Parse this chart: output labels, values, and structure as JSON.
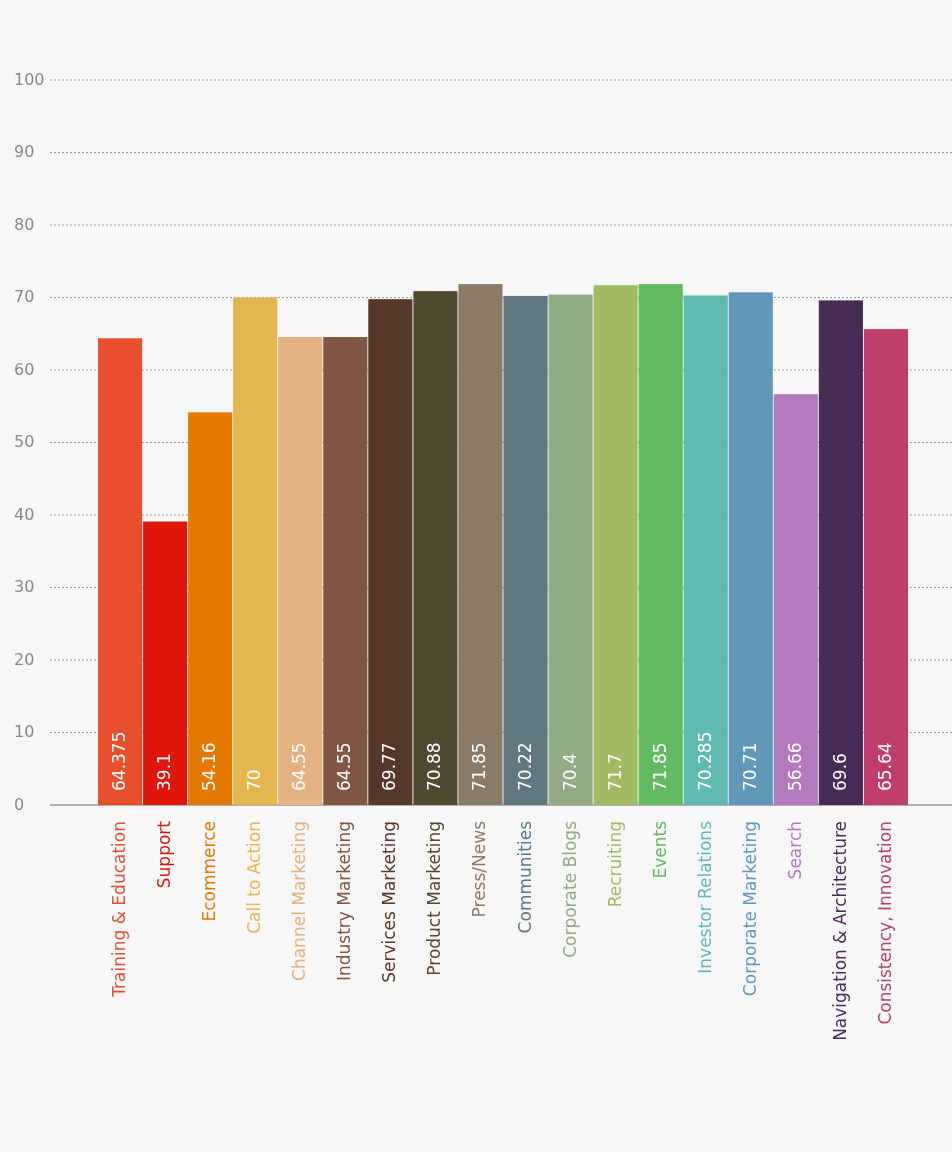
{
  "chart_data": {
    "type": "bar",
    "categories": [
      "Training & Education",
      "Support",
      "Ecommerce",
      "Call to Action",
      "Channel Marketing",
      "Industry Marketing",
      "Services Marketing",
      "Product Marketing",
      "Press/News",
      "Communities",
      "Corporate Blogs",
      "Recruiting",
      "Events",
      "Investor Relations",
      "Corporate Marketing",
      "Search",
      "Navigation & Architecture",
      "Consistency, Innovation"
    ],
    "values": [
      64.375,
      39.1,
      54.16,
      70,
      64.55,
      64.55,
      69.77,
      70.88,
      71.85,
      70.22,
      70.4,
      71.7,
      71.85,
      70.285,
      70.71,
      56.66,
      69.6,
      65.64
    ],
    "colors": [
      "#e8502d",
      "#e0150b",
      "#e57a00",
      "#e4b64f",
      "#e3b282",
      "#7f5744",
      "#55382a",
      "#524a30",
      "#8a7b69",
      "#5f7880",
      "#92ab84",
      "#a1bb62",
      "#62ba62",
      "#5fbab2",
      "#6198b9",
      "#b27abd",
      "#472d56",
      "#bf3e6c"
    ],
    "ylim": [
      0,
      100
    ],
    "yticks": [
      0,
      10,
      20,
      30,
      40,
      50,
      60,
      70,
      80,
      90,
      100
    ],
    "grid": "y",
    "data_labels": true
  }
}
